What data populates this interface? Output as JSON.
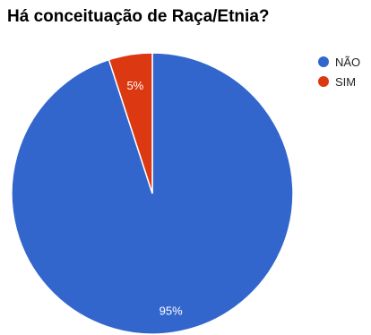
{
  "chart_data": {
    "type": "pie",
    "title": "Há conceituação de Raça/Etnia?",
    "slices": [
      {
        "label": "NÃO",
        "value": 95,
        "display": "95%",
        "color": "#3366cc"
      },
      {
        "label": "SIM",
        "value": 5,
        "display": "5%",
        "color": "#dc3912"
      }
    ],
    "legend_position": "right"
  }
}
